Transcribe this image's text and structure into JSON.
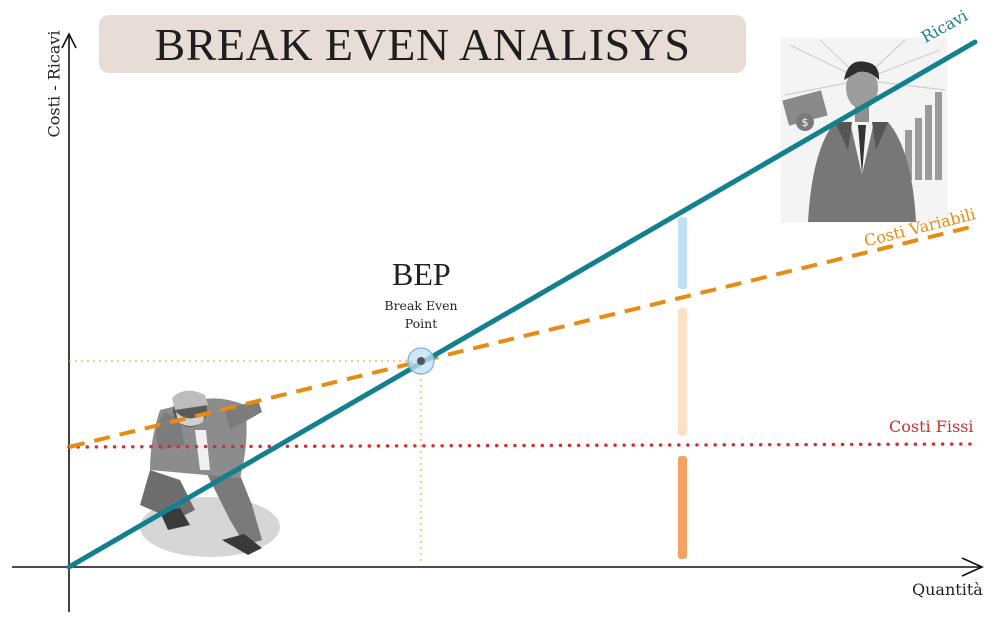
{
  "title": "BREAK EVEN ANALISYS",
  "axes": {
    "y_label": "Costi - Ricavi",
    "x_label": "Quantità"
  },
  "bep": {
    "label": "BEP",
    "sublabel_line1": "Break Even",
    "sublabel_line2": "Point"
  },
  "lines": {
    "ricavi": {
      "label": "Ricavi",
      "color": "#12808e"
    },
    "costi_variabili": {
      "label": "Costi Variabili",
      "color": "#e98a12"
    },
    "costi_fissi": {
      "label": "Costi Fissi",
      "color": "#d42d2d"
    }
  },
  "legend_bars": [
    {
      "name": "ricavi-bar",
      "color": "#bfe0f7"
    },
    {
      "name": "variabili-bar",
      "color": "#fbe2c6"
    },
    {
      "name": "fissi-bar",
      "color": "#f4a261"
    }
  ],
  "illustrations": {
    "loss": "stressed-man-crouching-icon",
    "profit": "successful-businessman-icon"
  }
}
